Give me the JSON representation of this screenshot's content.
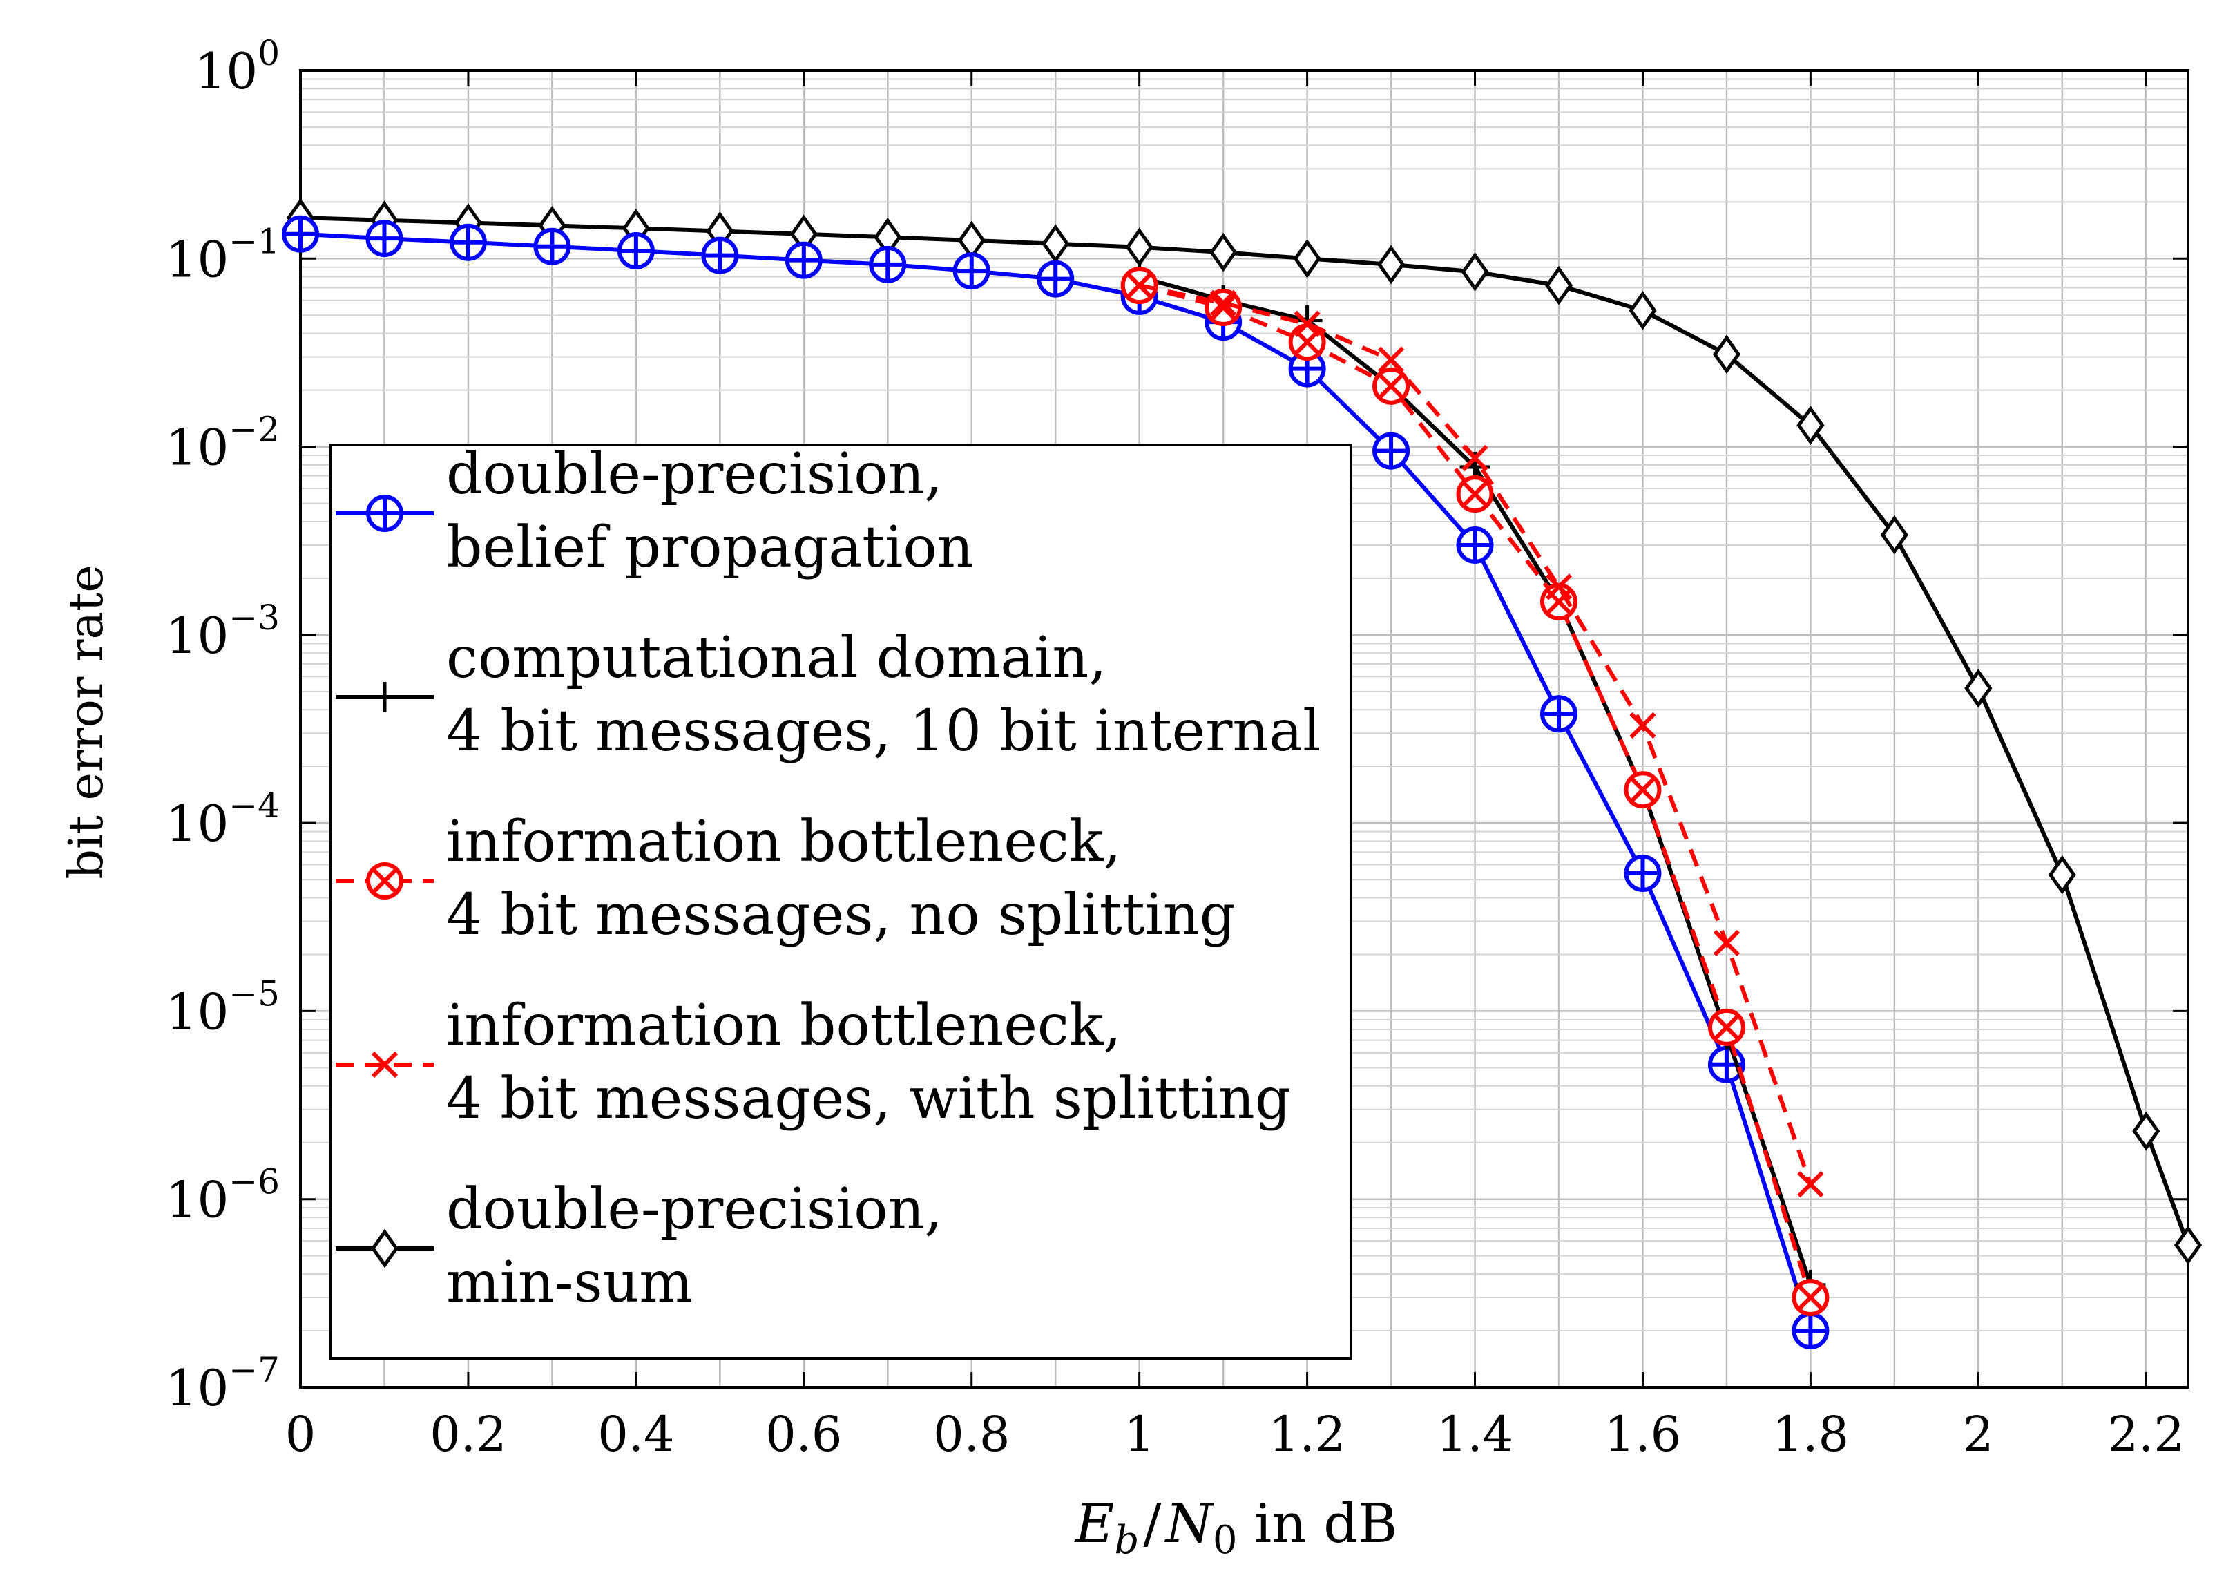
{
  "chart_data": {
    "type": "line",
    "title": "",
    "xlabel": "E_b/N_0 in dB",
    "xlabel_parts": {
      "e": "E",
      "b": "b",
      "slash": "/",
      "n": "N",
      "zero": "0",
      "unit": " in dB"
    },
    "ylabel": "bit error rate",
    "xlim": [
      0,
      2.25
    ],
    "ylim": [
      1e-07,
      1
    ],
    "yscale": "log",
    "grid": true,
    "x_ticks": [
      {
        "value": 0,
        "label": "0"
      },
      {
        "value": 0.2,
        "label": "0.2"
      },
      {
        "value": 0.4,
        "label": "0.4"
      },
      {
        "value": 0.6,
        "label": "0.6"
      },
      {
        "value": 0.8,
        "label": "0.8"
      },
      {
        "value": 1,
        "label": "1"
      },
      {
        "value": 1.2,
        "label": "1.2"
      },
      {
        "value": 1.4,
        "label": "1.4"
      },
      {
        "value": 1.6,
        "label": "1.6"
      },
      {
        "value": 1.8,
        "label": "1.8"
      },
      {
        "value": 2,
        "label": "2"
      },
      {
        "value": 2.2,
        "label": "2.2"
      }
    ],
    "y_ticks": [
      {
        "exp": 0,
        "base": "10",
        "power": "0"
      },
      {
        "exp": -1,
        "base": "10",
        "power": "−1"
      },
      {
        "exp": -2,
        "base": "10",
        "power": "−2"
      },
      {
        "exp": -3,
        "base": "10",
        "power": "−3"
      },
      {
        "exp": -4,
        "base": "10",
        "power": "−4"
      },
      {
        "exp": -5,
        "base": "10",
        "power": "−5"
      },
      {
        "exp": -6,
        "base": "10",
        "power": "−6"
      },
      {
        "exp": -7,
        "base": "10",
        "power": "−7"
      }
    ],
    "legend_position": "lower-left",
    "series": [
      {
        "name": "double-precision, belief propagation",
        "legend_lines": [
          "double-precision,",
          "belief propagation"
        ],
        "color": "#0000ff",
        "dash": "solid",
        "marker": "oplus",
        "x": [
          0,
          0.1,
          0.2,
          0.3,
          0.4,
          0.5,
          0.6,
          0.7,
          0.8,
          0.9,
          1.0,
          1.1,
          1.2,
          1.3,
          1.4,
          1.5,
          1.6,
          1.7,
          1.8
        ],
        "y": [
          0.135,
          0.128,
          0.122,
          0.116,
          0.11,
          0.104,
          0.098,
          0.093,
          0.086,
          0.078,
          0.063,
          0.046,
          0.026,
          0.0095,
          0.003,
          0.00038,
          5.4e-05,
          5.2e-06,
          2e-07
        ]
      },
      {
        "name": "computational domain, 4 bit messages, 10 bit internal",
        "legend_lines": [
          "computational domain,",
          "4 bit messages, 10 bit internal"
        ],
        "color": "#000000",
        "dash": "solid",
        "marker": "plus",
        "x": [
          1.0,
          1.1,
          1.2,
          1.3,
          1.4,
          1.5,
          1.6,
          1.7,
          1.8
        ],
        "y": [
          0.08,
          0.06,
          0.047,
          0.021,
          0.0078,
          0.0015,
          0.00015,
          7.5e-06,
          3.5e-07
        ]
      },
      {
        "name": "information bottleneck, 4 bit messages, no splitting",
        "legend_lines": [
          "information bottleneck,",
          "4 bit messages, no splitting"
        ],
        "color": "#ff0000",
        "dash": "dashed",
        "marker": "otimes",
        "x": [
          1.0,
          1.1,
          1.2,
          1.3,
          1.4,
          1.5,
          1.6,
          1.7,
          1.8
        ],
        "y": [
          0.072,
          0.055,
          0.036,
          0.021,
          0.0056,
          0.0015,
          0.00015,
          8.2e-06,
          3e-07
        ]
      },
      {
        "name": "information bottleneck, 4 bit messages, with splitting",
        "legend_lines": [
          "information bottleneck,",
          "4 bit messages, with splitting"
        ],
        "color": "#ff0000",
        "dash": "dashed",
        "marker": "x",
        "x": [
          1.0,
          1.1,
          1.2,
          1.3,
          1.4,
          1.5,
          1.6,
          1.7,
          1.8
        ],
        "y": [
          0.072,
          0.058,
          0.045,
          0.029,
          0.0087,
          0.0018,
          0.00033,
          2.3e-05,
          1.2e-06
        ]
      },
      {
        "name": "double-precision, min-sum",
        "legend_lines": [
          "double-precision,",
          "min-sum"
        ],
        "color": "#000000",
        "dash": "solid",
        "marker": "diamond",
        "x": [
          0,
          0.1,
          0.2,
          0.3,
          0.4,
          0.5,
          0.6,
          0.7,
          0.8,
          0.9,
          1.0,
          1.1,
          1.2,
          1.3,
          1.4,
          1.5,
          1.6,
          1.7,
          1.8,
          1.9,
          2.0,
          2.1,
          2.2,
          2.25
        ],
        "y": [
          0.165,
          0.16,
          0.155,
          0.15,
          0.145,
          0.14,
          0.135,
          0.13,
          0.125,
          0.12,
          0.115,
          0.108,
          0.1,
          0.093,
          0.085,
          0.072,
          0.053,
          0.031,
          0.013,
          0.0034,
          0.00052,
          5.3e-05,
          2.3e-06,
          5.7e-07
        ]
      }
    ]
  }
}
